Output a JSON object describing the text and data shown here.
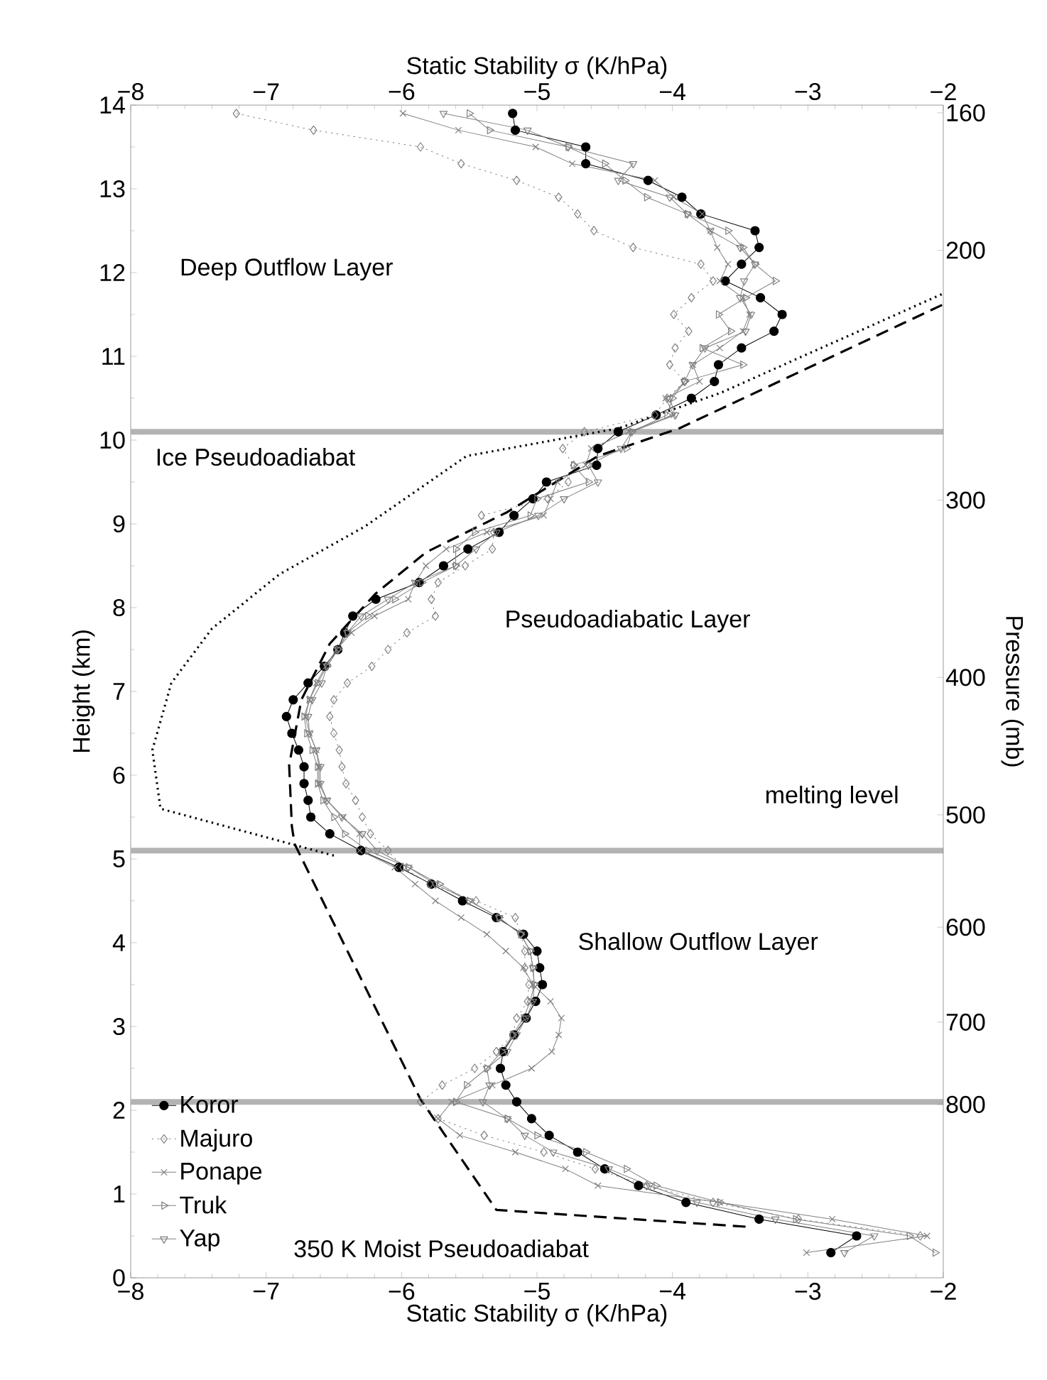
{
  "chart_data": {
    "type": "line",
    "xlabel": "Static Stability σ (K/hPa)",
    "ylabel": "Height (km)",
    "x2label": "Static Stability σ (K/hPa)",
    "y2label": "Pressure (mb)",
    "xlim": [
      -8,
      -2
    ],
    "ylim": [
      0,
      14
    ],
    "x2lim": [
      -8,
      -2
    ],
    "y2lim": [
      1060,
      158
    ],
    "log": "y2",
    "xticks": [
      {
        "value": -8,
        "label": "−8"
      },
      {
        "value": -7,
        "label": "−7"
      },
      {
        "value": -6,
        "label": "−6"
      },
      {
        "value": -5,
        "label": "−5"
      },
      {
        "value": -4,
        "label": "−4"
      },
      {
        "value": -3,
        "label": "−3"
      },
      {
        "value": -2,
        "label": "−2"
      }
    ],
    "x2ticks": [
      {
        "value": -8,
        "label": "−8"
      },
      {
        "value": -7,
        "label": "−7"
      },
      {
        "value": -6,
        "label": "−6"
      },
      {
        "value": -5,
        "label": "−5"
      },
      {
        "value": -4,
        "label": "−4"
      },
      {
        "value": -3,
        "label": "−3"
      },
      {
        "value": -2,
        "label": "−2"
      }
    ],
    "yticks": [
      0,
      1,
      2,
      3,
      4,
      5,
      6,
      7,
      8,
      9,
      10,
      11,
      12,
      13,
      14
    ],
    "y2ticks": [
      160,
      200,
      300,
      400,
      500,
      600,
      700,
      800
    ],
    "legend": "bottom left",
    "ref_lines": [
      {
        "axis": "y",
        "value": 10.1,
        "color": "#b3b3b3"
      },
      {
        "axis": "y",
        "value": 5.1,
        "color": "#b3b3b3"
      },
      {
        "axis": "y",
        "value": 2.1,
        "color": "#b3b3b3"
      }
    ],
    "annotations": [
      "Deep Outflow Layer",
      "Ice Pseudoadiabat",
      "Pseudoadiabatic Layer",
      "melting level",
      "Shallow Outflow Layer",
      "350 K Moist Pseudoadiabat"
    ],
    "series": [
      {
        "name": "Koror",
        "color": "#000000",
        "marker": "circle",
        "line_style": "solid",
        "x": [
          -5.18,
          -5.16,
          -4.64,
          -4.64,
          -4.18,
          -3.93,
          -3.79,
          -3.39,
          -3.36,
          -3.49,
          -3.61,
          -3.35,
          -3.19,
          -3.25,
          -3.49,
          -3.66,
          -3.69,
          -3.86,
          -4.12,
          -4.4,
          -4.55,
          -4.56,
          -4.93,
          -5.03,
          -5.17,
          -5.28,
          -5.51,
          -5.69,
          -5.87,
          -6.19,
          -6.36,
          -6.42,
          -6.47,
          -6.57,
          -6.69,
          -6.8,
          -6.85,
          -6.81,
          -6.76,
          -6.72,
          -6.72,
          -6.69,
          -6.67,
          -6.53,
          -6.3,
          -6.02,
          -5.78,
          -5.55,
          -5.3,
          -5.1,
          -5.0,
          -4.98,
          -4.96,
          -5.01,
          -5.08,
          -5.17,
          -5.25,
          -5.27,
          -5.23,
          -5.15,
          -5.04,
          -4.91,
          -4.7,
          -4.5,
          -4.25,
          -3.9,
          -3.36,
          -2.64,
          -2.83
        ],
        "values": [
          13.9,
          13.7,
          13.5,
          13.3,
          13.1,
          12.9,
          12.7,
          12.5,
          12.3,
          12.1,
          11.9,
          11.7,
          11.5,
          11.3,
          11.1,
          10.9,
          10.7,
          10.5,
          10.3,
          10.1,
          9.9,
          9.7,
          9.5,
          9.3,
          9.1,
          8.9,
          8.7,
          8.5,
          8.3,
          8.1,
          7.9,
          7.7,
          7.5,
          7.3,
          7.1,
          6.9,
          6.7,
          6.5,
          6.3,
          6.1,
          5.9,
          5.7,
          5.5,
          5.3,
          5.1,
          4.9,
          4.7,
          4.5,
          4.3,
          4.1,
          3.9,
          3.7,
          3.5,
          3.3,
          3.1,
          2.9,
          2.7,
          2.5,
          2.3,
          2.1,
          1.9,
          1.7,
          1.5,
          1.3,
          1.1,
          0.9,
          0.7,
          0.5,
          0.3
        ]
      },
      {
        "name": "Majuro",
        "color": "#808080",
        "marker": "diamond",
        "line_style": "dotted",
        "x": [
          -7.22,
          -6.65,
          -5.86,
          -5.56,
          -5.15,
          -4.84,
          -4.7,
          -4.58,
          -4.29,
          -3.79,
          -3.7,
          -3.86,
          -3.99,
          -3.88,
          -3.98,
          -4.02,
          -3.91,
          -4.04,
          -4.13,
          -4.65,
          -4.81,
          -4.73,
          -4.77,
          -4.92,
          -5.41,
          -5.32,
          -5.33,
          -5.53,
          -5.73,
          -5.78,
          -5.75,
          -5.96,
          -6.1,
          -6.22,
          -6.4,
          -6.5,
          -6.53,
          -6.5,
          -6.46,
          -6.44,
          -6.41,
          -6.34,
          -6.29,
          -6.23,
          -6.1,
          -5.99,
          -5.79,
          -5.45,
          -5.16,
          -5.12,
          -5.09,
          -5.09,
          -5.06,
          -5.07,
          -5.15,
          -5.18,
          -5.3,
          -5.46,
          -5.7,
          -5.86,
          -5.73,
          -5.39,
          -4.95,
          -4.57,
          -4.19,
          -3.7,
          -3.07,
          -2.17
        ],
        "values": [
          13.9,
          13.7,
          13.5,
          13.3,
          13.1,
          12.9,
          12.7,
          12.5,
          12.3,
          12.1,
          11.9,
          11.7,
          11.5,
          11.3,
          11.1,
          10.9,
          10.7,
          10.5,
          10.3,
          10.1,
          9.9,
          9.7,
          9.5,
          9.3,
          9.1,
          8.9,
          8.7,
          8.5,
          8.3,
          8.1,
          7.9,
          7.7,
          7.5,
          7.3,
          7.1,
          6.9,
          6.7,
          6.5,
          6.3,
          6.1,
          5.9,
          5.7,
          5.5,
          5.3,
          5.1,
          4.9,
          4.7,
          4.5,
          4.3,
          4.1,
          3.9,
          3.7,
          3.5,
          3.3,
          3.1,
          2.9,
          2.7,
          2.5,
          2.3,
          2.1,
          1.9,
          1.7,
          1.5,
          1.3,
          1.1,
          0.9,
          0.7,
          0.5
        ]
      },
      {
        "name": "Ponape",
        "color": "#808080",
        "marker": "cross",
        "line_style": "solid",
        "x": [
          -5.99,
          -5.58,
          -5.01,
          -4.74,
          -4.13,
          -3.99,
          -3.78,
          -3.72,
          -3.67,
          -3.59,
          -3.65,
          -3.48,
          -3.43,
          -3.48,
          -3.65,
          -3.85,
          -3.8,
          -4.05,
          -3.99,
          -4.32,
          -4.6,
          -4.64,
          -4.85,
          -4.9,
          -4.95,
          -5.37,
          -5.67,
          -5.82,
          -5.9,
          -5.95,
          -6.2,
          -6.37,
          -6.48,
          -6.56,
          -6.63,
          -6.68,
          -6.71,
          -6.68,
          -6.63,
          -6.61,
          -6.61,
          -6.55,
          -6.43,
          -6.31,
          -6.31,
          -6.05,
          -5.9,
          -5.75,
          -5.56,
          -5.37,
          -5.23,
          -5.1,
          -5.03,
          -4.9,
          -4.82,
          -4.84,
          -4.89,
          -5.04,
          -5.33,
          -5.63,
          -5.73,
          -5.57,
          -5.16,
          -4.79,
          -4.55,
          -3.65,
          -2.82,
          -2.12,
          -3.01
        ],
        "values": [
          13.9,
          13.7,
          13.5,
          13.3,
          13.1,
          12.9,
          12.7,
          12.5,
          12.3,
          12.1,
          11.9,
          11.7,
          11.5,
          11.3,
          11.1,
          10.9,
          10.7,
          10.5,
          10.3,
          10.1,
          9.9,
          9.7,
          9.5,
          9.3,
          9.1,
          8.9,
          8.7,
          8.5,
          8.3,
          8.1,
          7.9,
          7.7,
          7.5,
          7.3,
          7.1,
          6.9,
          6.7,
          6.5,
          6.3,
          6.1,
          5.9,
          5.7,
          5.5,
          5.3,
          5.1,
          4.9,
          4.7,
          4.5,
          4.3,
          4.1,
          3.9,
          3.7,
          3.5,
          3.3,
          3.1,
          2.9,
          2.7,
          2.5,
          2.3,
          2.1,
          1.9,
          1.7,
          1.5,
          1.3,
          1.1,
          0.9,
          0.7,
          0.5,
          0.3
        ]
      },
      {
        "name": "Truk",
        "color": "#808080",
        "marker": "triangle-right",
        "line_style": "solid",
        "x": [
          -5.5,
          -5.35,
          -4.77,
          -4.5,
          -4.35,
          -4.19,
          -3.89,
          -3.59,
          -3.48,
          -3.39,
          -3.24,
          -3.46,
          -3.66,
          -3.57,
          -3.78,
          -3.48,
          -3.91,
          -4.0,
          -4.04,
          -4.3,
          -4.34,
          -4.73,
          -4.62,
          -5.0,
          -5.05,
          -5.46,
          -5.6,
          -5.6,
          -5.85,
          -6.05,
          -6.25,
          -6.4,
          -6.47,
          -6.55,
          -6.62,
          -6.68,
          -6.72,
          -6.7,
          -6.66,
          -6.62,
          -6.62,
          -6.58,
          -6.5,
          -6.42,
          -6.25,
          -5.95,
          -5.72,
          -5.5,
          -5.28,
          -5.12,
          -5.05,
          -5.03,
          -5.02,
          -5.05,
          -5.1,
          -5.18,
          -5.26,
          -5.37,
          -5.52,
          -5.6,
          -5.22,
          -5.0,
          -4.64,
          -4.34,
          -4.12,
          -3.65,
          -3.09,
          -2.25,
          -2.06
        ],
        "values": [
          13.9,
          13.7,
          13.5,
          13.3,
          13.1,
          12.9,
          12.7,
          12.5,
          12.3,
          12.1,
          11.9,
          11.7,
          11.5,
          11.3,
          11.1,
          10.9,
          10.7,
          10.5,
          10.3,
          10.1,
          9.9,
          9.7,
          9.5,
          9.3,
          9.1,
          8.9,
          8.7,
          8.5,
          8.3,
          8.1,
          7.9,
          7.7,
          7.5,
          7.3,
          7.1,
          6.9,
          6.7,
          6.5,
          6.3,
          6.1,
          5.9,
          5.7,
          5.5,
          5.3,
          5.1,
          4.9,
          4.7,
          4.5,
          4.3,
          4.1,
          3.9,
          3.7,
          3.5,
          3.3,
          3.1,
          2.9,
          2.7,
          2.5,
          2.3,
          2.1,
          1.9,
          1.7,
          1.5,
          1.3,
          1.1,
          0.9,
          0.7,
          0.5,
          0.3
        ]
      },
      {
        "name": "Yap",
        "color": "#808080",
        "marker": "triangle-down",
        "line_style": "solid",
        "x": [
          -5.69,
          -5.07,
          -4.77,
          -4.29,
          -4.4,
          -4.02,
          -3.89,
          -3.72,
          -3.5,
          -3.39,
          -3.47,
          -3.5,
          -3.42,
          -3.46,
          -3.76,
          -3.85,
          -3.91,
          -4.02,
          -3.98,
          -4.3,
          -4.38,
          -4.62,
          -4.55,
          -4.8,
          -4.99,
          -5.3,
          -5.45,
          -5.6,
          -5.9,
          -6.1,
          -6.3,
          -6.4,
          -6.47,
          -6.55,
          -6.59,
          -6.66,
          -6.69,
          -6.68,
          -6.63,
          -6.6,
          -6.6,
          -6.55,
          -6.44,
          -6.29,
          -6.18,
          -5.95,
          -5.75,
          -5.5,
          -5.28,
          -5.12,
          -5.05,
          -5.03,
          -5.02,
          -5.03,
          -5.08,
          -5.15,
          -5.22,
          -5.37,
          -5.35,
          -5.4,
          -5.22,
          -5.09,
          -4.88,
          -4.47,
          -4.17,
          -3.82,
          -3.24,
          -2.51,
          -2.73
        ],
        "values": [
          13.9,
          13.7,
          13.5,
          13.3,
          13.1,
          12.9,
          12.7,
          12.5,
          12.3,
          12.1,
          11.9,
          11.7,
          11.5,
          11.3,
          11.1,
          10.9,
          10.7,
          10.5,
          10.3,
          10.1,
          9.9,
          9.7,
          9.5,
          9.3,
          9.1,
          8.9,
          8.7,
          8.5,
          8.3,
          8.1,
          7.9,
          7.7,
          7.5,
          7.3,
          7.1,
          6.9,
          6.7,
          6.5,
          6.3,
          6.1,
          5.9,
          5.7,
          5.5,
          5.3,
          5.1,
          4.9,
          4.7,
          4.5,
          4.3,
          4.1,
          3.9,
          3.7,
          3.5,
          3.3,
          3.1,
          2.9,
          2.7,
          2.5,
          2.3,
          2.1,
          1.9,
          1.7,
          1.5,
          1.3,
          1.1,
          0.9,
          0.7,
          0.5,
          0.3
        ]
      },
      {
        "color": "#000000",
        "marker": "none",
        "line_style": "dotted",
        "x": [
          -6.5,
          -7.78,
          -7.84,
          -7.7,
          -7.4,
          -6.9,
          -6.27,
          -5.52,
          -4.4,
          -3.65,
          -2.0
        ],
        "values": [
          5.04,
          5.6,
          6.3,
          7.1,
          7.75,
          8.4,
          8.97,
          9.81,
          10.14,
          10.56,
          11.75
        ]
      },
      {
        "color": "#000000",
        "marker": "none",
        "line_style": "dashed",
        "x": [
          -3.46,
          -5.3,
          -5.86,
          -6.79,
          -6.81,
          -6.83,
          -6.74,
          -6.53,
          -6.19,
          -5.82,
          -5.22,
          -4.55,
          -3.95,
          -2.0
        ],
        "values": [
          0.61,
          0.81,
          2.13,
          5.18,
          5.39,
          6.12,
          6.9,
          7.57,
          8.17,
          8.66,
          9.14,
          9.81,
          10.14,
          11.62
        ]
      }
    ]
  }
}
